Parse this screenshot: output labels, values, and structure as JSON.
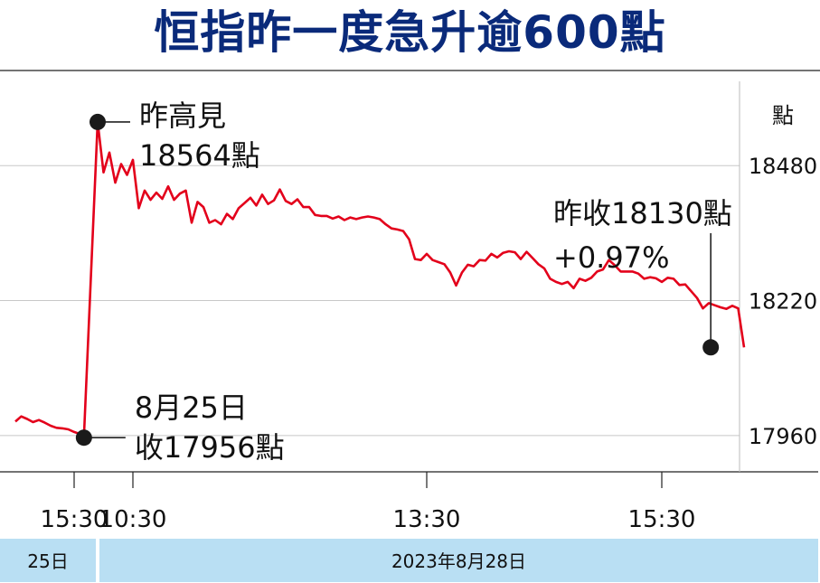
{
  "title": "恒指昨一度急升逾600點",
  "chart_data": {
    "type": "line",
    "yunit": "點",
    "yticks": [
      17960,
      18220,
      18480
    ],
    "ylim": [
      17932,
      18590
    ],
    "xticks": [
      {
        "label": "15:30",
        "t": 0
      },
      {
        "label": "10:30",
        "t": 30
      },
      {
        "label": "13:30",
        "t": 180
      },
      {
        "label": "15:30",
        "t": 300
      }
    ],
    "xlim": [
      -30,
      360
    ],
    "sessions": [
      {
        "label": "25日",
        "t_start": -30,
        "t_end": 12
      },
      {
        "label": "2023年8月28日",
        "t_start": 12,
        "t_end": 360
      }
    ],
    "annotations": [
      {
        "line1": "昨高見",
        "line2": "18564點",
        "t": 12,
        "y": 18564
      },
      {
        "line1": "8月25日",
        "line2": "收17956點",
        "t": 5,
        "y": 17956
      },
      {
        "line1": "昨收18130點",
        "line2": "+0.97%",
        "t": 325,
        "y": 18130
      }
    ],
    "series": [
      {
        "color": "#e3001b",
        "points": [
          [
            -30,
            17987
          ],
          [
            -27,
            17997
          ],
          [
            -24,
            17992
          ],
          [
            -21,
            17986
          ],
          [
            -18,
            17990
          ],
          [
            -15,
            17985
          ],
          [
            -12,
            17979
          ],
          [
            -9,
            17975
          ],
          [
            -6,
            17974
          ],
          [
            -3,
            17972
          ],
          [
            0,
            17967
          ],
          [
            3,
            17963
          ],
          [
            5,
            17956
          ],
          [
            12,
            18564
          ],
          [
            15,
            18467
          ],
          [
            18,
            18505
          ],
          [
            21,
            18447
          ],
          [
            24,
            18483
          ],
          [
            27,
            18462
          ],
          [
            30,
            18491
          ],
          [
            33,
            18398
          ],
          [
            36,
            18432
          ],
          [
            39,
            18414
          ],
          [
            42,
            18428
          ],
          [
            45,
            18416
          ],
          [
            48,
            18440
          ],
          [
            51,
            18414
          ],
          [
            54,
            18426
          ],
          [
            57,
            18432
          ],
          [
            60,
            18370
          ],
          [
            63,
            18410
          ],
          [
            66,
            18400
          ],
          [
            69,
            18370
          ],
          [
            72,
            18375
          ],
          [
            75,
            18367
          ],
          [
            78,
            18387
          ],
          [
            81,
            18377
          ],
          [
            84,
            18398
          ],
          [
            87,
            18408
          ],
          [
            90,
            18418
          ],
          [
            93,
            18403
          ],
          [
            96,
            18424
          ],
          [
            99,
            18406
          ],
          [
            102,
            18413
          ],
          [
            105,
            18434
          ],
          [
            108,
            18412
          ],
          [
            111,
            18406
          ],
          [
            114,
            18415
          ],
          [
            117,
            18400
          ],
          [
            120,
            18400
          ],
          [
            123,
            18385
          ],
          [
            126,
            18383
          ],
          [
            129,
            18383
          ],
          [
            132,
            18378
          ],
          [
            135,
            18382
          ],
          [
            138,
            18375
          ],
          [
            141,
            18380
          ],
          [
            144,
            18377
          ],
          [
            147,
            18380
          ],
          [
            150,
            18382
          ],
          [
            153,
            18380
          ],
          [
            156,
            18377
          ],
          [
            159,
            18367
          ],
          [
            162,
            18359
          ],
          [
            165,
            18357
          ],
          [
            168,
            18354
          ],
          [
            171,
            18338
          ],
          [
            174,
            18300
          ],
          [
            177,
            18298
          ],
          [
            180,
            18310
          ],
          [
            183,
            18298
          ],
          [
            186,
            18294
          ],
          [
            189,
            18290
          ],
          [
            192,
            18274
          ],
          [
            195,
            18249
          ],
          [
            198,
            18274
          ],
          [
            201,
            18289
          ],
          [
            204,
            18286
          ],
          [
            207,
            18298
          ],
          [
            210,
            18297
          ],
          [
            213,
            18310
          ],
          [
            216,
            18303
          ],
          [
            219,
            18312
          ],
          [
            222,
            18315
          ],
          [
            225,
            18313
          ],
          [
            228,
            18300
          ],
          [
            231,
            18314
          ],
          [
            234,
            18302
          ],
          [
            237,
            18290
          ],
          [
            240,
            18282
          ],
          [
            243,
            18262
          ],
          [
            246,
            18256
          ],
          [
            249,
            18252
          ],
          [
            252,
            18256
          ],
          [
            255,
            18244
          ],
          [
            258,
            18262
          ],
          [
            261,
            18258
          ],
          [
            264,
            18264
          ],
          [
            267,
            18276
          ],
          [
            270,
            18280
          ],
          [
            273,
            18298
          ],
          [
            276,
            18288
          ],
          [
            279,
            18276
          ],
          [
            282,
            18276
          ],
          [
            285,
            18276
          ],
          [
            288,
            18272
          ],
          [
            291,
            18262
          ],
          [
            294,
            18265
          ],
          [
            297,
            18263
          ],
          [
            300,
            18256
          ],
          [
            303,
            18264
          ],
          [
            306,
            18262
          ],
          [
            309,
            18250
          ],
          [
            312,
            18251
          ],
          [
            315,
            18238
          ],
          [
            318,
            18225
          ],
          [
            321,
            18205
          ],
          [
            324,
            18215
          ],
          [
            327,
            18211
          ],
          [
            330,
            18207
          ],
          [
            333,
            18204
          ],
          [
            336,
            18210
          ],
          [
            339,
            18205
          ],
          [
            342,
            18130
          ]
        ]
      }
    ]
  }
}
